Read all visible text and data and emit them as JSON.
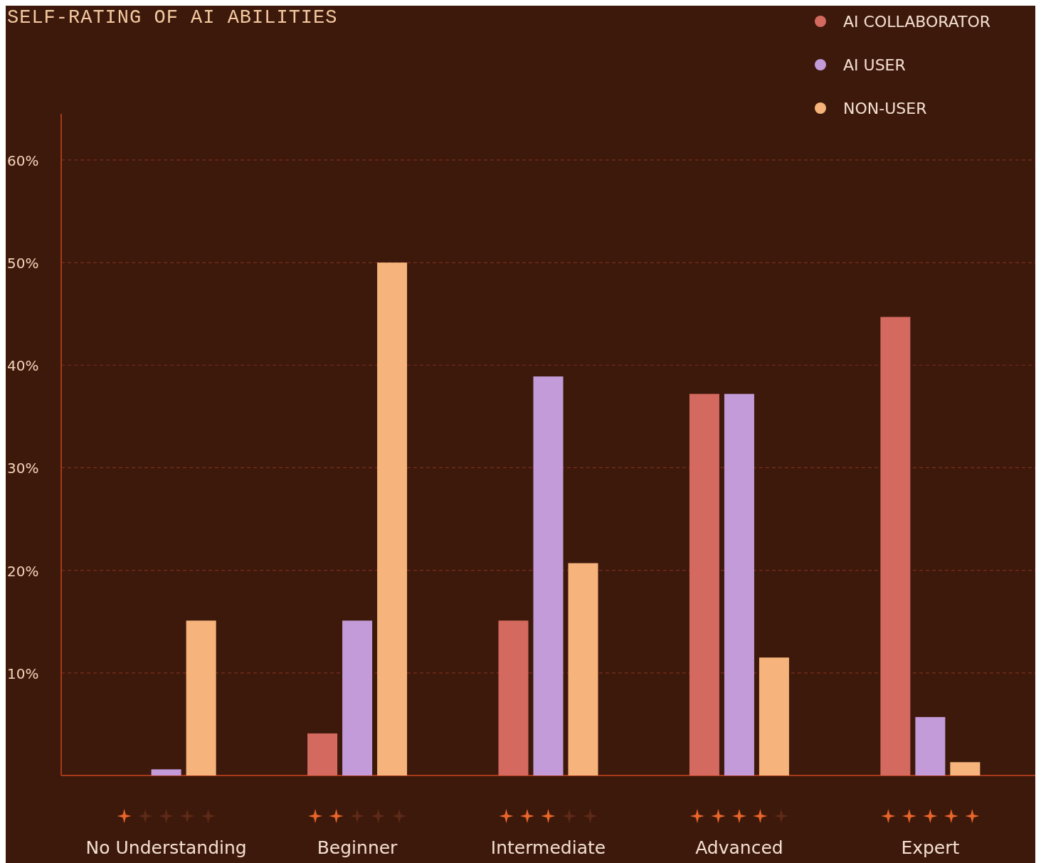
{
  "chart_data": {
    "type": "bar",
    "title": "SELF-RATING OF AI ABILITIES",
    "categories": [
      "No Understanding",
      "Beginner",
      "Intermediate",
      "Advanced",
      "Expert"
    ],
    "series": [
      {
        "name": "AI COLLABORATOR",
        "color": "#d4695f",
        "values": [
          null,
          4.1,
          15.1,
          37.2,
          44.7
        ]
      },
      {
        "name": "AI USER",
        "color": "#c29bd8",
        "values": [
          0.6,
          15.1,
          38.9,
          37.2,
          5.7
        ]
      },
      {
        "name": "NON-USER",
        "color": "#f6b47c",
        "values": [
          15.1,
          50.0,
          20.7,
          11.5,
          1.3
        ]
      }
    ],
    "ylim": [
      0,
      64.5
    ],
    "yticks": [
      {
        "value": 10,
        "label": "10%"
      },
      {
        "value": 20,
        "label": "20%"
      },
      {
        "value": 30,
        "label": "30%"
      },
      {
        "value": 40,
        "label": "40%"
      },
      {
        "value": 50,
        "label": "50%"
      },
      {
        "value": 60,
        "label": "60%"
      }
    ],
    "grid": "y",
    "legend": "top right"
  }
}
